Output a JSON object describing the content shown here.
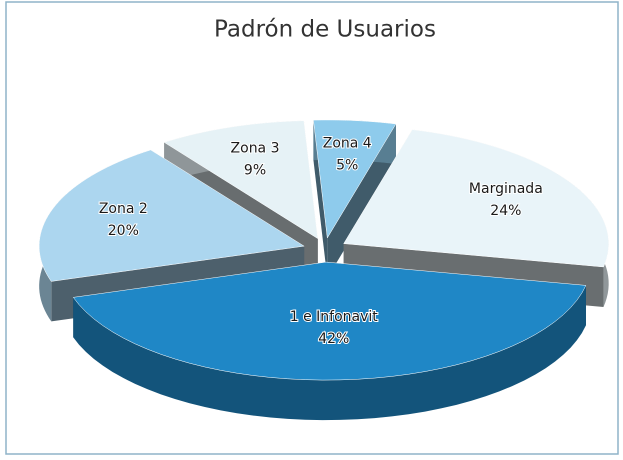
{
  "chart_data": {
    "type": "pie",
    "title": "Padrón de Usuarios",
    "categories": [
      "Zona 4",
      "Marginada",
      "1 e Infonavit",
      "Zona 2",
      "Zona 3"
    ],
    "values": [
      5,
      24,
      42,
      20,
      9
    ],
    "value_labels": [
      "5%",
      "24%",
      "42%",
      "20%",
      "9%"
    ],
    "colors": [
      "#8ecbec",
      "#e9f4f9",
      "#1f87c6",
      "#acd6ef",
      "#e6f2f6"
    ]
  }
}
